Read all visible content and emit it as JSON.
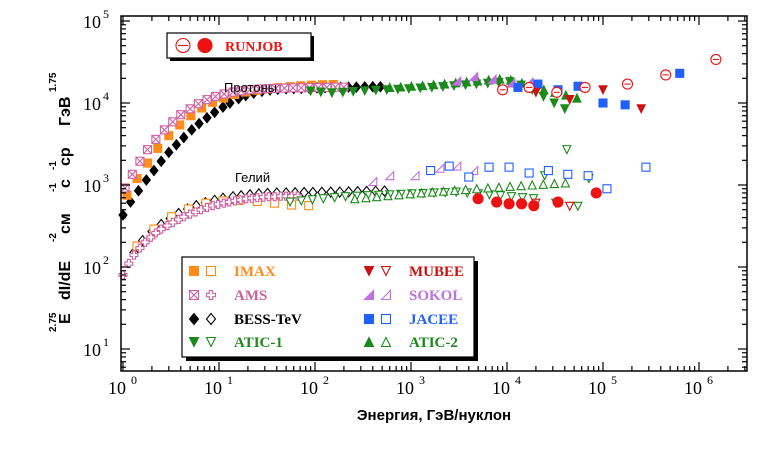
{
  "chart_data": {
    "type": "scatter",
    "xlabel": "Энергия, ГэВ/нуклон",
    "ylabel": {
      "base": "E dI/dE см с ср ГэВ",
      "prefix": "E",
      "main": "dI/dE",
      "unit1": "см",
      "unit2": "с",
      "unit3": "ср",
      "unit4": "ГэВ",
      "sup_e": "2.75",
      "sup_cm": "-2",
      "sup_s": "-1",
      "sup_sr": "-1",
      "sup_gev": "1.75"
    },
    "x_scale": "log",
    "y_scale": "log",
    "xlim": [
      1,
      3000000
    ],
    "ylim": [
      5,
      100000
    ],
    "x_ticks": [
      {
        "value": 1,
        "base": "10",
        "exp": "0"
      },
      {
        "value": 10,
        "base": "10",
        "exp": "1"
      },
      {
        "value": 100,
        "base": "10",
        "exp": "2"
      },
      {
        "value": 1000,
        "base": "10",
        "exp": "3"
      },
      {
        "value": 10000,
        "base": "10",
        "exp": "4"
      },
      {
        "value": 100000,
        "base": "10",
        "exp": "5"
      },
      {
        "value": 1000000,
        "base": "10",
        "exp": "6"
      }
    ],
    "y_ticks": [
      {
        "value": 10,
        "base": "10",
        "exp": "1"
      },
      {
        "value": 100,
        "base": "10",
        "exp": "2"
      },
      {
        "value": 1000,
        "base": "10",
        "exp": "3"
      },
      {
        "value": 10000,
        "base": "10",
        "exp": "4"
      },
      {
        "value": 100000,
        "base": "10",
        "exp": "5"
      }
    ],
    "annotations": {
      "protons": "Протоны",
      "helium": "Гелий"
    },
    "legend_box": {
      "label": "RUNJOB",
      "color": "#ee1111"
    },
    "legend": [
      {
        "name": "IMAX",
        "color": "#ff8c1a",
        "proton_marker": "square",
        "helium_marker": "square-open"
      },
      {
        "name": "AMS",
        "color": "#d060a0",
        "proton_marker": "square-x",
        "helium_marker": "plus-open"
      },
      {
        "name": "BESS-TeV",
        "color": "#000000",
        "proton_marker": "diamond",
        "helium_marker": "diamond-open"
      },
      {
        "name": "ATIC-1",
        "color": "#1a8a1a",
        "proton_marker": "triangle-down",
        "helium_marker": "triangle-down-open"
      },
      {
        "name": "MUBEE",
        "color": "#cc1111",
        "proton_marker": "triangle-down",
        "helium_marker": "triangle-down-open"
      },
      {
        "name": "SOKOL",
        "color": "#c070e0",
        "proton_marker": "half-triangle",
        "helium_marker": "half-triangle-open"
      },
      {
        "name": "JACEE",
        "color": "#2060ff",
        "proton_marker": "square",
        "helium_marker": "square-open"
      },
      {
        "name": "ATIC-2",
        "color": "#1a8a1a",
        "proton_marker": "triangle-up",
        "helium_marker": "triangle-up-open"
      }
    ],
    "series": [
      {
        "key": "bess_p",
        "color": "#000000",
        "marker": "diamond",
        "x": [
          1.0,
          1.2,
          1.45,
          1.75,
          2.1,
          2.5,
          3.0,
          3.6,
          4.3,
          5.2,
          6.2,
          7.5,
          9.0,
          11,
          13,
          16,
          19,
          23,
          28,
          34,
          41,
          50,
          60,
          72,
          87,
          105,
          127,
          153,
          185,
          223,
          270,
          330,
          400,
          480
        ],
        "y": [
          430,
          620,
          850,
          1150,
          1500,
          1950,
          2500,
          3100,
          3800,
          4700,
          5600,
          6600,
          7700,
          8900,
          10000,
          11300,
          12300,
          13200,
          13900,
          14400,
          14700,
          14900,
          15000,
          15100,
          15200,
          15300,
          15400,
          15500,
          15500,
          15600,
          15600,
          15700,
          15800,
          15800
        ]
      },
      {
        "key": "imax_p",
        "color": "#ff8c1a",
        "marker": "square",
        "x": [
          1.1,
          1.4,
          1.8,
          2.3,
          3.0,
          3.9,
          5.1,
          6.6,
          8.6,
          11.2,
          14.6,
          19,
          25,
          32,
          42,
          55,
          71,
          92,
          120,
          155
        ],
        "y": [
          750,
          1200,
          1850,
          2800,
          4000,
          5400,
          7000,
          8700,
          10200,
          11500,
          12700,
          13600,
          14300,
          14900,
          15400,
          15800,
          16200,
          16500,
          16700,
          16800
        ]
      },
      {
        "key": "ams_p",
        "color": "#d060a0",
        "marker": "square-x",
        "x": [
          1.05,
          1.25,
          1.5,
          1.8,
          2.2,
          2.7,
          3.3,
          4.0,
          5.0,
          6.1,
          7.5,
          9.2,
          11.3,
          14,
          17,
          21,
          26,
          32,
          39,
          48,
          59,
          72,
          88,
          108,
          133,
          163,
          200
        ],
        "y": [
          920,
          1350,
          1950,
          2700,
          3600,
          4700,
          5900,
          7200,
          8500,
          9800,
          11000,
          12000,
          12900,
          13600,
          14100,
          14500,
          14800,
          15000,
          15100,
          15200,
          15300,
          15300,
          15400,
          15400,
          15500,
          15600,
          15600
        ]
      },
      {
        "key": "atic1_p",
        "color": "#1a8a1a",
        "marker": "triangle-down",
        "x": [
          90,
          115,
          150,
          195,
          250,
          330,
          430,
          560,
          730,
          950,
          1250,
          1650,
          2150,
          2800,
          3700,
          4800,
          6300,
          8200,
          10700,
          14000,
          18300,
          24000,
          31000,
          40000
        ],
        "y": [
          14000,
          13600,
          13300,
          13500,
          13800,
          14100,
          14300,
          14500,
          14700,
          14900,
          15200,
          15500,
          15800,
          16200,
          16600,
          17000,
          17400,
          17800,
          18200,
          16500,
          14500,
          12000,
          10000,
          8500
        ]
      },
      {
        "key": "atic2_p",
        "color": "#1a8a1a",
        "marker": "triangle-up",
        "x": [
          600,
          780,
          1010,
          1320,
          1720,
          2240,
          2920,
          3800,
          4950,
          6450,
          8400,
          10950,
          14260,
          18580,
          24200,
          31500,
          41000,
          53500
        ],
        "y": [
          15500,
          15700,
          16000,
          16300,
          16700,
          17100,
          17600,
          18100,
          18600,
          19100,
          19600,
          19000,
          17500,
          16000,
          14500,
          13500,
          12500,
          11500
        ]
      },
      {
        "key": "sokol_p",
        "color": "#c070e0",
        "marker": "half-triangle",
        "x": [
          3000,
          4500,
          7000,
          11000,
          17000
        ],
        "y": [
          18500,
          21000,
          19500,
          17500,
          18000
        ]
      },
      {
        "key": "jacee_p",
        "color": "#2060ff",
        "marker": "square",
        "x": [
          13000,
          21000,
          34000,
          55000,
          100000,
          170000,
          630000
        ],
        "y": [
          15500,
          17000,
          14500,
          16000,
          10000,
          9500,
          23000
        ]
      },
      {
        "key": "mubee_p",
        "color": "#cc1111",
        "marker": "triangle-down",
        "x": [
          20000,
          45000,
          100000,
          250000
        ],
        "y": [
          13500,
          11000,
          14500,
          8500
        ]
      },
      {
        "key": "runjob_p",
        "color": "#ee1111",
        "marker": "circle-open",
        "x": [
          9000,
          17000,
          33000,
          65000,
          180000,
          450000,
          1500000
        ],
        "y": [
          14500,
          15500,
          13500,
          15500,
          17000,
          22000,
          34000
        ]
      },
      {
        "key": "bess_he",
        "color": "#000000",
        "marker": "diamond-open",
        "x": [
          1.3,
          1.6,
          2.0,
          2.5,
          3.1,
          3.8,
          4.7,
          5.8,
          7.2,
          9.0,
          11,
          14,
          17,
          21,
          26,
          32,
          40,
          50,
          62,
          77,
          95,
          118,
          146,
          181,
          224,
          278,
          345,
          428,
          530
        ],
        "y": [
          150,
          210,
          270,
          330,
          390,
          450,
          510,
          560,
          610,
          650,
          690,
          720,
          740,
          760,
          780,
          790,
          800,
          800,
          805,
          810,
          810,
          815,
          820,
          820,
          825,
          830,
          835,
          840,
          845
        ]
      },
      {
        "key": "imax_he",
        "color": "#ff8c1a",
        "marker": "square-open",
        "x": [
          1.4,
          2.1,
          3.2,
          4.8,
          7.3,
          11,
          16.5,
          25,
          38,
          57,
          86
        ],
        "y": [
          180,
          290,
          410,
          510,
          600,
          640,
          650,
          630,
          600,
          570,
          560
        ]
      },
      {
        "key": "ams_he",
        "color": "#d060a0",
        "marker": "plus-open",
        "x": [
          1.0,
          1.15,
          1.3,
          1.5,
          1.7,
          1.95,
          2.2,
          2.5,
          2.9,
          3.3,
          3.8,
          4.3,
          5.0,
          5.7,
          6.5,
          7.5,
          8.6,
          9.8,
          11.2,
          12.8,
          14.7,
          16.8,
          19.2,
          22,
          25,
          29,
          33,
          38,
          44,
          50,
          57,
          66
        ],
        "y": [
          80,
          110,
          140,
          170,
          200,
          230,
          260,
          290,
          320,
          350,
          380,
          410,
          440,
          470,
          500,
          530,
          560,
          580,
          600,
          620,
          640,
          660,
          680,
          690,
          700,
          710,
          720,
          720,
          730,
          730,
          730,
          730
        ]
      },
      {
        "key": "atic1_he",
        "color": "#1a8a1a",
        "marker": "triangle-down-open",
        "x": [
          55,
          72,
          94,
          122,
          160,
          208,
          271,
          354,
          461,
          601,
          784,
          1022,
          1333,
          1738,
          2266,
          2955,
          3852,
          5023,
          6550,
          8540,
          11130,
          14500,
          18900,
          24700,
          32200,
          42000,
          54700,
          71300
        ],
        "y": [
          620,
          640,
          660,
          680,
          700,
          720,
          730,
          740,
          750,
          760,
          770,
          780,
          790,
          800,
          810,
          820,
          800,
          780,
          760,
          740,
          720,
          700,
          680,
          1300,
          600,
          2700,
          550,
          1200
        ]
      },
      {
        "key": "atic2_he",
        "color": "#1a8a1a",
        "marker": "triangle-up-open",
        "x": [
          260,
          340,
          440,
          575,
          750,
          980,
          1280,
          1670,
          2180,
          2850,
          3710,
          4840,
          6320,
          8240,
          10750,
          14030,
          18300,
          23870,
          31140,
          40620
        ],
        "y": [
          680,
          700,
          720,
          740,
          760,
          780,
          800,
          820,
          840,
          860,
          880,
          900,
          920,
          940,
          960,
          980,
          1000,
          1020,
          1040,
          1060
        ]
      },
      {
        "key": "sokol_he",
        "color": "#c070e0",
        "marker": "half-triangle-open",
        "x": [
          400,
          600,
          1100,
          2000,
          3000,
          4500
        ],
        "y": [
          1100,
          1300,
          1300,
          1600,
          1700,
          1500
        ]
      },
      {
        "key": "jacee_he",
        "color": "#2060ff",
        "marker": "square-open",
        "x": [
          1600,
          2500,
          4000,
          6500,
          10500,
          17000,
          27000,
          43000,
          70000,
          110000,
          280000
        ],
        "y": [
          1500,
          1700,
          1250,
          1650,
          1650,
          1400,
          1500,
          1350,
          1300,
          900,
          1650
        ]
      },
      {
        "key": "mubee_he",
        "color": "#cc1111",
        "marker": "triangle-down-open",
        "x": [
          20000,
          45000
        ],
        "y": [
          600,
          550
        ]
      },
      {
        "key": "runjob_he",
        "color": "#ee1111",
        "marker": "circle",
        "x": [
          5000,
          7800,
          10500,
          14200,
          19000,
          34000,
          85000
        ],
        "y": [
          680,
          620,
          590,
          590,
          560,
          620,
          800
        ]
      }
    ]
  }
}
